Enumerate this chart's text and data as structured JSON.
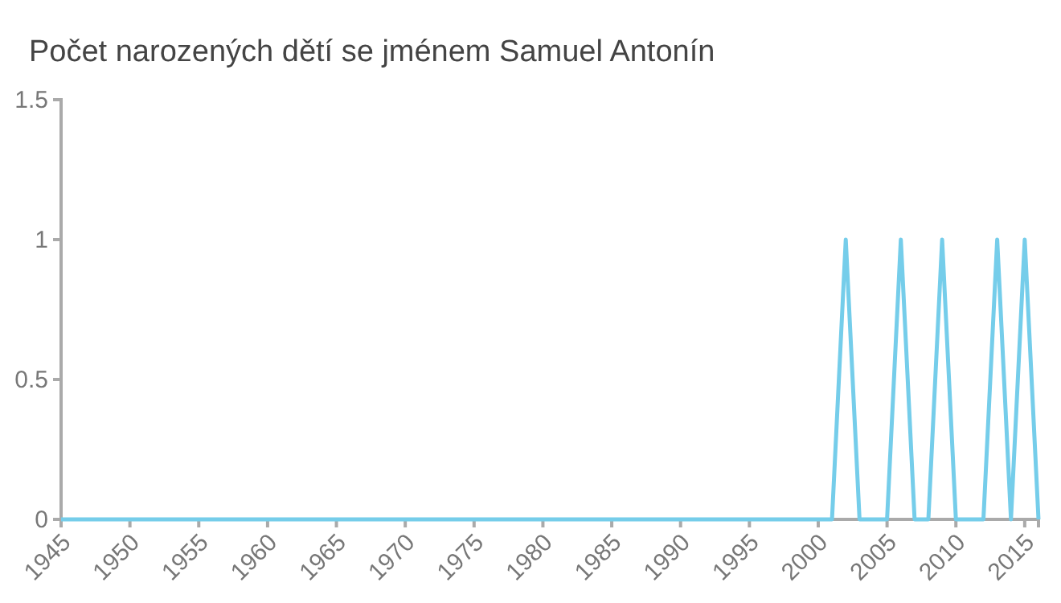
{
  "chart_data": {
    "type": "line",
    "title": "Počet narozených dětí se jménem Samuel Antonín",
    "x": [
      1945,
      2001,
      2002,
      2003,
      2005,
      2006,
      2007,
      2008,
      2009,
      2010,
      2012,
      2013,
      2014,
      2015,
      2016
    ],
    "series": [
      {
        "color": "#75cdea",
        "values": [
          0,
          0,
          1,
          0,
          0,
          1,
          0,
          0,
          1,
          0,
          0,
          1,
          0,
          1,
          0
        ]
      }
    ],
    "xlim": [
      1945,
      2016
    ],
    "xticks": [
      1945,
      1950,
      1955,
      1960,
      1965,
      1970,
      1975,
      1980,
      1985,
      1990,
      1995,
      2000,
      2005,
      2010,
      2015
    ],
    "ylim": [
      0,
      1.5
    ],
    "yticks": [
      0,
      0.5,
      1,
      1.5
    ],
    "grid": false,
    "marker": "none",
    "line_style": "solid"
  }
}
